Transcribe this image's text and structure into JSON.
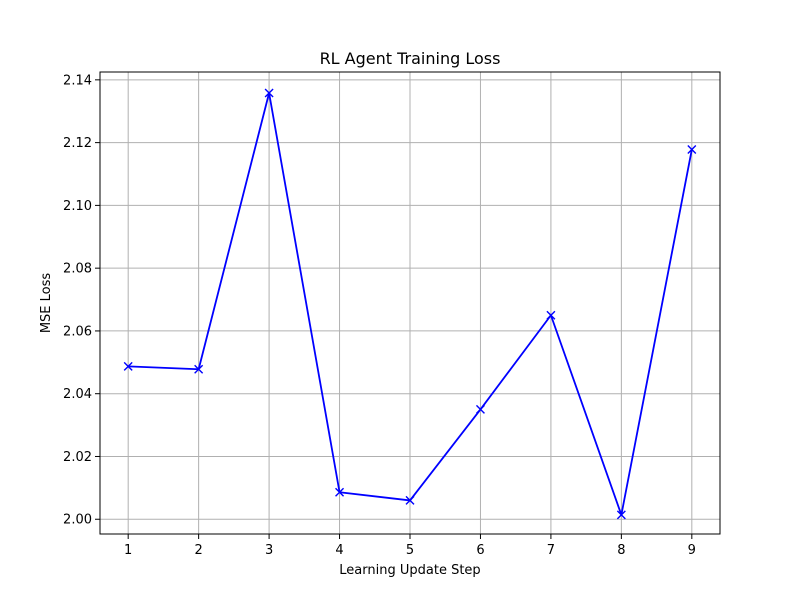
{
  "chart_data": {
    "type": "line",
    "title": "RL Agent Training Loss",
    "xlabel": "Learning Update Step",
    "ylabel": "MSE Loss",
    "x": [
      1,
      2,
      3,
      4,
      5,
      6,
      7,
      8,
      9
    ],
    "xticks": [
      "1",
      "2",
      "3",
      "4",
      "5",
      "6",
      "7",
      "8",
      "9"
    ],
    "yticks": [
      "2.00",
      "2.02",
      "2.04",
      "2.06",
      "2.08",
      "2.10",
      "2.12",
      "2.14"
    ],
    "xlim": [
      0.6,
      9.4
    ],
    "ylim": [
      1.9953,
      2.1425
    ],
    "grid": true,
    "series": [
      {
        "values": [
          2.0487,
          2.0478,
          2.1358,
          2.0086,
          2.006,
          2.035,
          2.065,
          2.0014,
          2.1178
        ],
        "color": "#0000ff",
        "marker": "x"
      }
    ]
  }
}
